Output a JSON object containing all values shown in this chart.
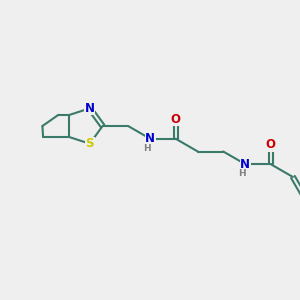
{
  "bg_color": "#efefef",
  "bond_color": "#3a7a6a",
  "bond_width": 1.5,
  "atom_colors": {
    "N": "#0000cc",
    "O": "#cc0000",
    "S": "#cccc00",
    "H": "#808080"
  },
  "font_size_atom": 8.5,
  "font_size_h": 6.5,
  "xlim": [
    0,
    10
  ],
  "ylim": [
    0,
    10
  ]
}
